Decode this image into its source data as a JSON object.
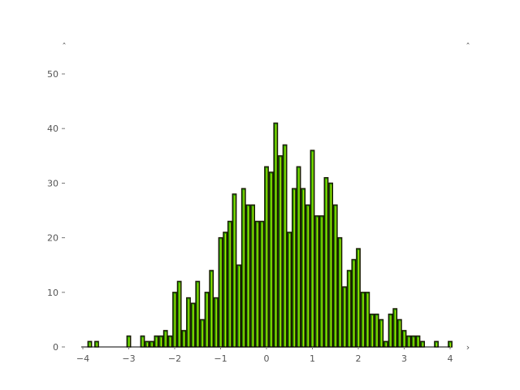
{
  "chart_data": {
    "type": "bar",
    "title": "",
    "xlabel": "",
    "ylabel": "",
    "xlim": [
      -4,
      4
    ],
    "ylim": [
      0,
      55
    ],
    "grid": false,
    "bar_fill_color": "#33aa00",
    "bar_edge_color": "#1a1a00",
    "bar_highlight_color": "#bbee00",
    "bin_width": 0.1,
    "x_ticks": [
      {
        "value": -4,
        "label": "−4"
      },
      {
        "value": -3,
        "label": "−3"
      },
      {
        "value": -2,
        "label": "−2"
      },
      {
        "value": -1,
        "label": "−1"
      },
      {
        "value": 0,
        "label": "0"
      },
      {
        "value": 1,
        "label": "1"
      },
      {
        "value": 2,
        "label": "2"
      },
      {
        "value": 3,
        "label": "3"
      },
      {
        "value": 4,
        "label": "4"
      }
    ],
    "y_ticks": [
      {
        "value": 0,
        "label": "0"
      },
      {
        "value": 10,
        "label": "10"
      },
      {
        "value": 20,
        "label": "20"
      },
      {
        "value": 30,
        "label": "30"
      },
      {
        "value": 40,
        "label": "40"
      },
      {
        "value": 50,
        "label": "50"
      }
    ],
    "bins": [
      {
        "x": -3.85,
        "count": 1
      },
      {
        "x": -3.7,
        "count": 1
      },
      {
        "x": -3.0,
        "count": 2
      },
      {
        "x": -2.7,
        "count": 2
      },
      {
        "x": -2.6,
        "count": 1
      },
      {
        "x": -2.5,
        "count": 1
      },
      {
        "x": -2.4,
        "count": 2
      },
      {
        "x": -2.3,
        "count": 2
      },
      {
        "x": -2.2,
        "count": 3
      },
      {
        "x": -2.1,
        "count": 2
      },
      {
        "x": -2.0,
        "count": 10
      },
      {
        "x": -1.9,
        "count": 12
      },
      {
        "x": -1.8,
        "count": 3
      },
      {
        "x": -1.7,
        "count": 9
      },
      {
        "x": -1.6,
        "count": 8
      },
      {
        "x": -1.5,
        "count": 12
      },
      {
        "x": -1.4,
        "count": 5
      },
      {
        "x": -1.3,
        "count": 10
      },
      {
        "x": -1.2,
        "count": 14
      },
      {
        "x": -1.1,
        "count": 9
      },
      {
        "x": -1.0,
        "count": 20
      },
      {
        "x": -0.9,
        "count": 21
      },
      {
        "x": -0.8,
        "count": 23
      },
      {
        "x": -0.7,
        "count": 28
      },
      {
        "x": -0.6,
        "count": 15
      },
      {
        "x": -0.5,
        "count": 29
      },
      {
        "x": -0.4,
        "count": 26
      },
      {
        "x": -0.3,
        "count": 26
      },
      {
        "x": -0.2,
        "count": 23
      },
      {
        "x": -0.1,
        "count": 23
      },
      {
        "x": 0.0,
        "count": 33
      },
      {
        "x": 0.1,
        "count": 32
      },
      {
        "x": 0.2,
        "count": 41
      },
      {
        "x": 0.3,
        "count": 35
      },
      {
        "x": 0.4,
        "count": 37
      },
      {
        "x": 0.5,
        "count": 21
      },
      {
        "x": 0.6,
        "count": 29
      },
      {
        "x": 0.7,
        "count": 33
      },
      {
        "x": 0.8,
        "count": 29
      },
      {
        "x": 0.9,
        "count": 26
      },
      {
        "x": 1.0,
        "count": 36
      },
      {
        "x": 1.1,
        "count": 24
      },
      {
        "x": 1.2,
        "count": 24
      },
      {
        "x": 1.3,
        "count": 31
      },
      {
        "x": 1.4,
        "count": 30
      },
      {
        "x": 1.5,
        "count": 26
      },
      {
        "x": 1.6,
        "count": 20
      },
      {
        "x": 1.7,
        "count": 11
      },
      {
        "x": 1.8,
        "count": 14
      },
      {
        "x": 1.9,
        "count": 16
      },
      {
        "x": 2.0,
        "count": 18
      },
      {
        "x": 2.1,
        "count": 10
      },
      {
        "x": 2.2,
        "count": 10
      },
      {
        "x": 2.3,
        "count": 6
      },
      {
        "x": 2.4,
        "count": 6
      },
      {
        "x": 2.5,
        "count": 5
      },
      {
        "x": 2.6,
        "count": 1
      },
      {
        "x": 2.7,
        "count": 6
      },
      {
        "x": 2.8,
        "count": 7
      },
      {
        "x": 2.9,
        "count": 5
      },
      {
        "x": 3.0,
        "count": 3
      },
      {
        "x": 3.1,
        "count": 2
      },
      {
        "x": 3.2,
        "count": 2
      },
      {
        "x": 3.3,
        "count": 2
      },
      {
        "x": 3.4,
        "count": 1
      },
      {
        "x": 3.7,
        "count": 1
      },
      {
        "x": 4.0,
        "count": 1
      }
    ]
  }
}
